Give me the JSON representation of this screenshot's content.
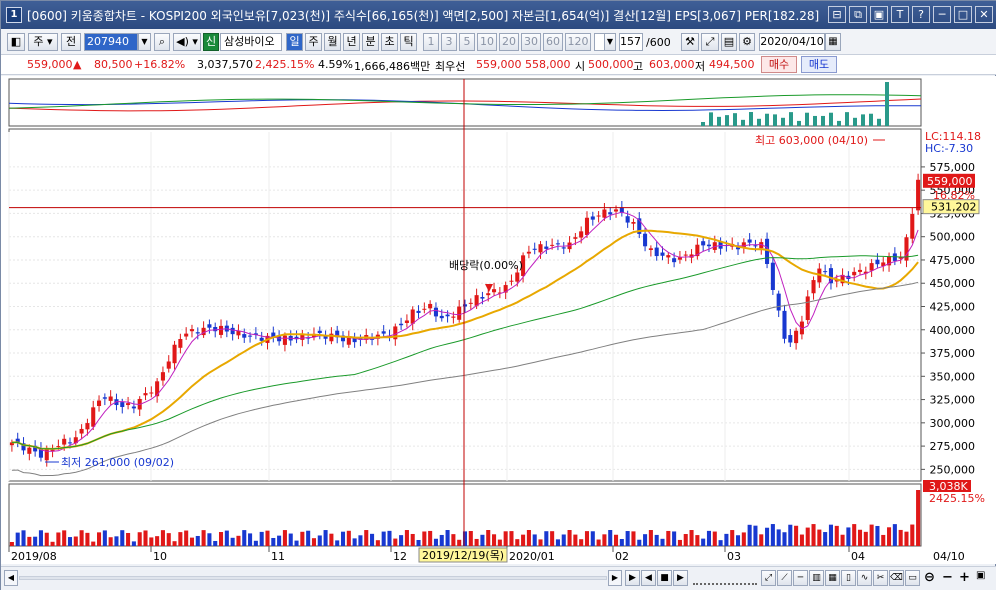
{
  "title": {
    "text": "[0600] 키움종합차트 - KOSPI200 외국인보유[7,023(천)] 주식수[66,165(천)] 액면[2,500] 자본금[1,654(억)] 결산[12월] EPS[3,067] PER[182.28]",
    "app_icon": "1",
    "buttons": [
      "⊟",
      "⧉",
      "▣",
      "T",
      "?",
      "─",
      "□",
      "✕"
    ]
  },
  "toolbar": {
    "btn_stock": "주",
    "btn_all": "전",
    "code": "207940",
    "btn_new": "신",
    "stock_name": "삼성바이오",
    "period_day": "일",
    "period_week": "주",
    "period_month": "월",
    "period_year": "년",
    "period_min": "분",
    "period_sec": "초",
    "period_tick": "틱",
    "intervals": [
      "1",
      "3",
      "5",
      "10",
      "20",
      "30",
      "60",
      "120"
    ],
    "count": "157",
    "total": "/600",
    "date": "2020/04/10"
  },
  "quote": {
    "price": "559,000",
    "change_arrow": "▲",
    "change": "80,500",
    "change_pct": "+16.82%",
    "volume": "3,037,570",
    "volume_pct": "2,425.15%",
    "turnover": "4.59%",
    "amount": "1,666,486백만",
    "best_label": "최우선",
    "best_ask": "559,000",
    "best_bid": "558,000",
    "open_label": "시",
    "open": "500,000",
    "high_label": "고",
    "high": "603,000",
    "low_label": "저",
    "low": "494,500",
    "buy": "매수",
    "sell": "매도"
  },
  "axes": {
    "price_ticks": [
      "575,000",
      "550,000",
      "525,000",
      "500,000",
      "475,000",
      "450,000",
      "425,000",
      "400,000",
      "375,000",
      "350,000",
      "325,000",
      "300,000",
      "275,000",
      "250,000"
    ],
    "lc": "LC:114.18",
    "hc": "HC:-7.30",
    "current_price": "559,000",
    "current_pct": "16.82%",
    "crosshair_price": "531,202",
    "volume_label": "3,038K",
    "volume_pct": "2425.15%",
    "x_ticks": [
      "2019/08",
      "10",
      "11",
      "12",
      "2020/01",
      "02",
      "03",
      "04"
    ],
    "x_right": "04/10",
    "crosshair_date": "2019/12/19(목)"
  },
  "annotations": {
    "high_label": "최고 603,000 (04/10)",
    "low_label": "최저 261,000 (09/02)",
    "dividend_label": "배당락(0.00%)"
  },
  "colors": {
    "up": "#e01818",
    "down": "#1838d0",
    "ma5": "#c020c0",
    "ma20": "#e8a800",
    "ma60": "#1a9a2a",
    "ma120": "#808080",
    "crosshair": "#c00000"
  }
}
